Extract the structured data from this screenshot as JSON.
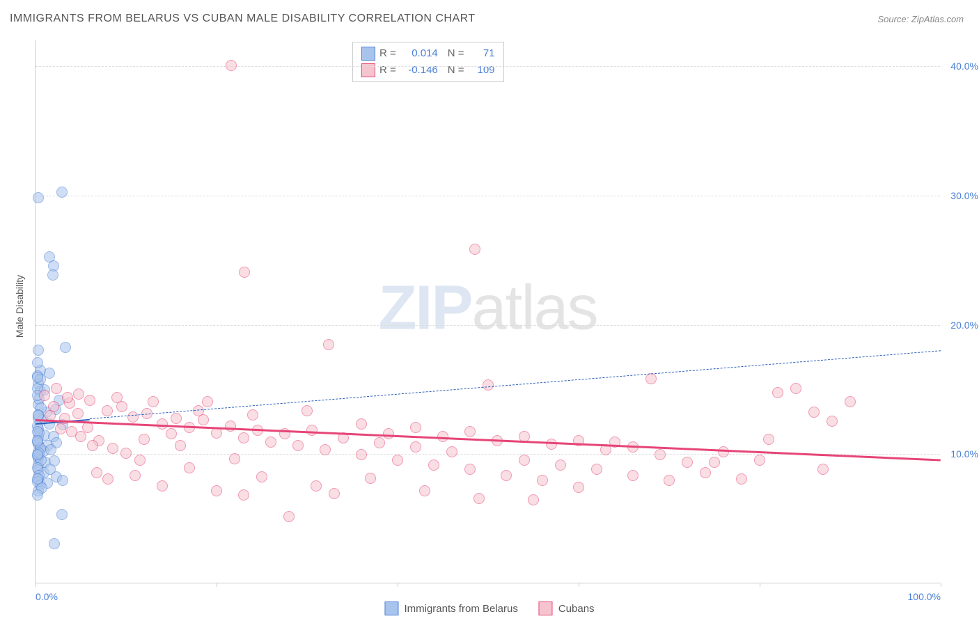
{
  "title": "IMMIGRANTS FROM BELARUS VS CUBAN MALE DISABILITY CORRELATION CHART",
  "source": "Source: ZipAtlas.com",
  "y_axis_label": "Male Disability",
  "watermark": {
    "zip": "ZIP",
    "atlas": "atlas"
  },
  "chart": {
    "type": "scatter",
    "xlim": [
      0,
      100
    ],
    "ylim": [
      0,
      42
    ],
    "x_ticks": [
      0,
      20,
      40,
      60,
      80,
      100
    ],
    "x_tick_labels_shown": {
      "start": "0.0%",
      "end": "100.0%"
    },
    "y_gridlines": [
      10,
      20,
      30,
      40
    ],
    "y_tick_labels": [
      "10.0%",
      "20.0%",
      "30.0%",
      "40.0%"
    ],
    "background_color": "#ffffff",
    "grid_color": "#dddddd",
    "axis_color": "#cccccc",
    "tick_label_color": "#4a7fd6",
    "marker_radius": 8,
    "marker_opacity": 0.55,
    "marker_border_width": 1.2
  },
  "series": [
    {
      "name": "Immigrants from Belarus",
      "fill_color": "#a9c4ec",
      "border_color": "#4a7fd6",
      "trend_border": "#2a5db8",
      "R": "0.014",
      "N": "71",
      "trend": {
        "x1": 0,
        "y1": 12.4,
        "x2": 100,
        "y2": 18.0,
        "solid_until_x": 6,
        "dash": "6,5",
        "width": 2
      },
      "points": [
        [
          0.3,
          29.8
        ],
        [
          2.9,
          30.2
        ],
        [
          1.5,
          25.2
        ],
        [
          2.0,
          24.5
        ],
        [
          1.9,
          23.8
        ],
        [
          0.3,
          18.0
        ],
        [
          3.3,
          18.2
        ],
        [
          0.5,
          16.4
        ],
        [
          1.5,
          16.2
        ],
        [
          0.3,
          15.4
        ],
        [
          2.6,
          14.1
        ],
        [
          0.5,
          14.8
        ],
        [
          1.0,
          14.9
        ],
        [
          0.3,
          13.8
        ],
        [
          1.2,
          13.2
        ],
        [
          2.2,
          13.4
        ],
        [
          0.3,
          12.7
        ],
        [
          0.8,
          12.6
        ],
        [
          1.5,
          12.3
        ],
        [
          3.0,
          12.2
        ],
        [
          0.3,
          11.9
        ],
        [
          0.3,
          11.2
        ],
        [
          1.0,
          11.4
        ],
        [
          2.0,
          11.3
        ],
        [
          0.3,
          10.7
        ],
        [
          1.4,
          10.6
        ],
        [
          2.3,
          10.8
        ],
        [
          0.3,
          10.1
        ],
        [
          0.9,
          10.2
        ],
        [
          1.7,
          10.3
        ],
        [
          0.3,
          9.6
        ],
        [
          0.3,
          9.1
        ],
        [
          1.1,
          9.3
        ],
        [
          2.1,
          9.4
        ],
        [
          0.3,
          8.7
        ],
        [
          0.9,
          8.5
        ],
        [
          1.6,
          8.8
        ],
        [
          0.3,
          8.1
        ],
        [
          2.3,
          8.2
        ],
        [
          0.5,
          7.6
        ],
        [
          1.3,
          7.7
        ],
        [
          3.0,
          7.9
        ],
        [
          0.3,
          7.1
        ],
        [
          2.9,
          5.3
        ],
        [
          2.1,
          3.0
        ],
        [
          0.2,
          16.0
        ],
        [
          0.2,
          15.0
        ],
        [
          0.4,
          14.2
        ],
        [
          0.6,
          13.5
        ],
        [
          0.2,
          12.1
        ],
        [
          0.4,
          11.6
        ],
        [
          0.2,
          10.9
        ],
        [
          0.5,
          10.4
        ],
        [
          0.2,
          9.8
        ],
        [
          0.6,
          9.5
        ],
        [
          0.2,
          8.9
        ],
        [
          0.4,
          8.3
        ],
        [
          0.2,
          7.8
        ],
        [
          0.7,
          7.3
        ],
        [
          0.2,
          6.8
        ],
        [
          0.2,
          17.0
        ],
        [
          0.5,
          15.7
        ],
        [
          0.2,
          14.5
        ],
        [
          0.3,
          13.0
        ],
        [
          0.2,
          11.7
        ],
        [
          0.4,
          10.0
        ],
        [
          0.2,
          8.0
        ],
        [
          0.2,
          15.9
        ],
        [
          0.3,
          12.9
        ],
        [
          0.2,
          9.9
        ],
        [
          0.2,
          11.0
        ]
      ]
    },
    {
      "name": "Cubans",
      "fill_color": "#f5c4cf",
      "border_color": "#e64578",
      "trend_border": "#e64578",
      "R": "-0.146",
      "N": "109",
      "trend": {
        "x1": 0,
        "y1": 12.7,
        "x2": 100,
        "y2": 9.6,
        "solid_until_x": 100,
        "dash": "none",
        "width": 3
      },
      "points": [
        [
          21.6,
          40.0
        ],
        [
          23.1,
          24.0
        ],
        [
          48.5,
          25.8
        ],
        [
          32.4,
          18.4
        ],
        [
          1.0,
          14.5
        ],
        [
          2.3,
          15.0
        ],
        [
          3.8,
          13.9
        ],
        [
          4.8,
          14.6
        ],
        [
          6.0,
          14.1
        ],
        [
          7.9,
          13.3
        ],
        [
          9.5,
          13.6
        ],
        [
          10.8,
          12.8
        ],
        [
          12.3,
          13.1
        ],
        [
          14.0,
          12.3
        ],
        [
          15.5,
          12.7
        ],
        [
          17.0,
          12.0
        ],
        [
          18.5,
          12.6
        ],
        [
          20.0,
          11.6
        ],
        [
          21.5,
          12.1
        ],
        [
          23.0,
          11.2
        ],
        [
          24.5,
          11.8
        ],
        [
          26.0,
          10.9
        ],
        [
          27.5,
          11.5
        ],
        [
          29.0,
          10.6
        ],
        [
          30.5,
          11.8
        ],
        [
          32.0,
          10.3
        ],
        [
          34.0,
          11.2
        ],
        [
          36.0,
          9.9
        ],
        [
          38.0,
          10.8
        ],
        [
          40.0,
          9.5
        ],
        [
          42.0,
          10.5
        ],
        [
          44.0,
          9.1
        ],
        [
          46.0,
          10.1
        ],
        [
          48.0,
          8.8
        ],
        [
          50.0,
          15.3
        ],
        [
          52.0,
          8.3
        ],
        [
          54.0,
          9.5
        ],
        [
          56.0,
          7.9
        ],
        [
          58.0,
          9.1
        ],
        [
          60.0,
          7.4
        ],
        [
          62.0,
          8.8
        ],
        [
          64.0,
          10.9
        ],
        [
          66.0,
          8.3
        ],
        [
          68.0,
          15.8
        ],
        [
          70.0,
          7.9
        ],
        [
          72.0,
          9.3
        ],
        [
          74.0,
          8.5
        ],
        [
          76.0,
          10.1
        ],
        [
          78.0,
          8.0
        ],
        [
          80.0,
          9.5
        ],
        [
          82.0,
          14.7
        ],
        [
          84.0,
          15.0
        ],
        [
          86.0,
          13.2
        ],
        [
          88.0,
          12.5
        ],
        [
          90.0,
          14.0
        ],
        [
          13.0,
          14.0
        ],
        [
          19.0,
          14.0
        ],
        [
          25.0,
          8.2
        ],
        [
          31.0,
          7.5
        ],
        [
          37.0,
          8.1
        ],
        [
          43.0,
          7.1
        ],
        [
          49.0,
          6.5
        ],
        [
          55.0,
          6.4
        ],
        [
          28.0,
          5.1
        ],
        [
          33.0,
          6.9
        ],
        [
          39.0,
          11.5
        ],
        [
          45.0,
          11.3
        ],
        [
          51.0,
          11.0
        ],
        [
          57.0,
          10.7
        ],
        [
          63.0,
          10.3
        ],
        [
          69.0,
          9.9
        ],
        [
          75.0,
          9.3
        ],
        [
          81.0,
          11.1
        ],
        [
          87.0,
          8.8
        ],
        [
          5.0,
          11.3
        ],
        [
          5.8,
          12.0
        ],
        [
          7.0,
          11.0
        ],
        [
          8.5,
          10.4
        ],
        [
          10.0,
          10.0
        ],
        [
          11.5,
          9.5
        ],
        [
          3.2,
          12.7
        ],
        [
          4.0,
          11.7
        ],
        [
          4.7,
          13.1
        ],
        [
          6.3,
          10.6
        ],
        [
          2.0,
          13.6
        ],
        [
          2.8,
          11.9
        ],
        [
          1.6,
          12.9
        ],
        [
          3.5,
          14.3
        ],
        [
          9.0,
          14.3
        ],
        [
          16.0,
          10.6
        ],
        [
          22.0,
          9.6
        ],
        [
          6.8,
          8.5
        ],
        [
          8.0,
          8.0
        ],
        [
          11.0,
          8.3
        ],
        [
          14.0,
          7.5
        ],
        [
          17.0,
          8.9
        ],
        [
          20.0,
          7.1
        ],
        [
          23.0,
          6.8
        ],
        [
          12.0,
          11.1
        ],
        [
          15.0,
          11.5
        ],
        [
          18.0,
          13.3
        ],
        [
          24.0,
          13.0
        ],
        [
          30.0,
          13.3
        ],
        [
          36.0,
          12.3
        ],
        [
          42.0,
          12.0
        ],
        [
          48.0,
          11.7
        ],
        [
          54.0,
          11.3
        ],
        [
          60.0,
          11.0
        ],
        [
          66.0,
          10.5
        ]
      ]
    }
  ],
  "stats_labels": {
    "R": "R =",
    "N": "N ="
  },
  "legend": [
    {
      "label": "Immigrants from Belarus",
      "fill": "#a9c4ec",
      "border": "#4a7fd6"
    },
    {
      "label": "Cubans",
      "fill": "#f5c4cf",
      "border": "#e64578"
    }
  ]
}
